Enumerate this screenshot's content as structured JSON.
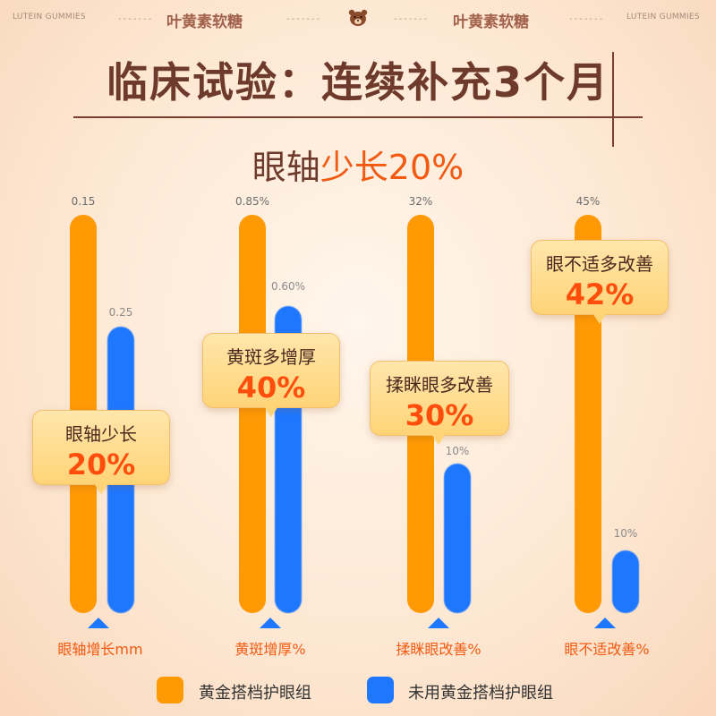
{
  "top_bar": {
    "left_en": "LUTEIN GUMMIES",
    "left_cn": "叶黄素软糖",
    "right_cn": "叶黄素软糖",
    "right_en": "LUTEIN GUMMIES",
    "dash": "-------"
  },
  "title": "临床试验：连续补充3个月",
  "subtitle": {
    "prefix": "眼轴",
    "highlight": "少长20%"
  },
  "colors": {
    "orange": "#ff9a05",
    "blue": "#1e77ff",
    "accent": "#f25a12",
    "title": "#6e3a2c"
  },
  "chart_data": {
    "type": "bar",
    "categories": [
      "眼轴增长mm",
      "黄斑增厚%",
      "揉眯眼改善%",
      "眼不适改善%"
    ],
    "series": [
      {
        "name": "黄金搭档护眼组",
        "value_labels": [
          "0.15",
          "0.85%",
          "32%",
          "45%"
        ]
      },
      {
        "name": "未用黄金搭档护眼组",
        "value_labels": [
          "0.25",
          "0.60%",
          "10%",
          "10%"
        ]
      }
    ],
    "callouts": [
      {
        "label": "眼轴少长",
        "value": "20%"
      },
      {
        "label": "黄斑多增厚",
        "value": "40%"
      },
      {
        "label": "揉眯眼多改善",
        "value": "30%"
      },
      {
        "label": "眼不适多改善",
        "value": "42%"
      }
    ]
  },
  "legend": [
    "黄金搭档护眼组",
    "未用黄金搭档护眼组"
  ]
}
